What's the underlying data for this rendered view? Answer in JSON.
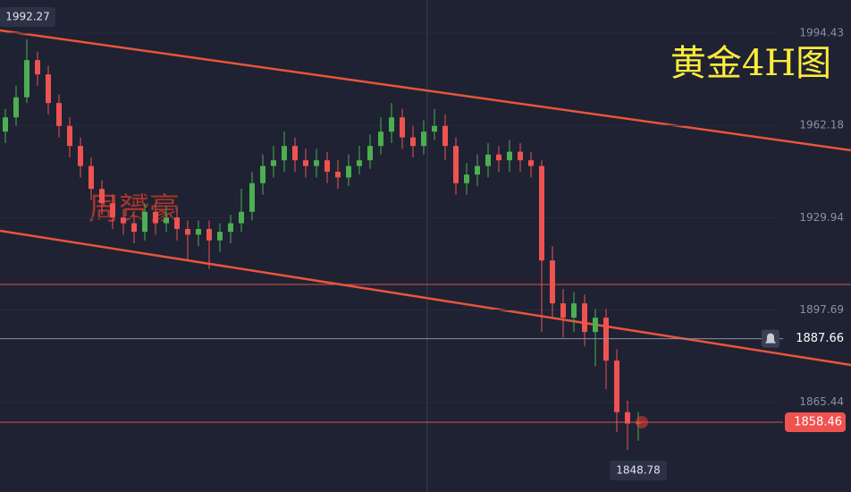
{
  "chart_data": {
    "type": "candlestick",
    "title": "黄金4H图",
    "watermark": "周赟豪",
    "ylim": [
      1834.1,
      2006.0
    ],
    "yticks": [
      1994.43,
      1962.18,
      1929.94,
      1897.69,
      1865.44
    ],
    "up_color": "#4caf50",
    "down_color": "#ef5350",
    "high_label": 1992.27,
    "low_label": 1848.78,
    "alert_price": 1887.66,
    "last_price": 1858.46,
    "open": [
      1960,
      1965,
      1972,
      1985,
      1980,
      1970,
      1962,
      1955,
      1948,
      1940,
      1935,
      1930,
      1928,
      1925,
      1932,
      1928,
      1930,
      1926,
      1924,
      1926,
      1922,
      1925,
      1928,
      1932,
      1942,
      1948,
      1950,
      1955,
      1950,
      1948,
      1950,
      1946,
      1944,
      1948,
      1950,
      1955,
      1960,
      1965,
      1958,
      1955,
      1960,
      1962,
      1955,
      1942,
      1945,
      1948,
      1952,
      1950,
      1953,
      1950,
      1948,
      1915,
      1900,
      1895,
      1900,
      1890,
      1895,
      1880,
      1862,
      1858
    ],
    "high": [
      1968,
      1976,
      1992.27,
      1988,
      1983,
      1973,
      1965,
      1958,
      1951,
      1943,
      1938,
      1933,
      1931,
      1935,
      1935,
      1934,
      1933,
      1929,
      1929,
      1929,
      1928,
      1931,
      1940,
      1946,
      1952,
      1955,
      1960,
      1958,
      1954,
      1954,
      1953,
      1950,
      1952,
      1955,
      1959,
      1965,
      1970,
      1968,
      1962,
      1964,
      1968,
      1966,
      1958,
      1949,
      1952,
      1956,
      1955,
      1957,
      1956,
      1953,
      1950,
      1920,
      1905,
      1904,
      1903,
      1898,
      1898,
      1884,
      1866,
      1862
    ],
    "low": [
      1956,
      1962,
      1970,
      1976,
      1966,
      1958,
      1951,
      1944,
      1936,
      1931,
      1926,
      1924,
      1921,
      1922,
      1924,
      1925,
      1922,
      1915,
      1920,
      1912,
      1918,
      1921,
      1925,
      1929,
      1938,
      1944,
      1946,
      1946,
      1944,
      1944,
      1942,
      1940,
      1941,
      1945,
      1947,
      1952,
      1956,
      1954,
      1951,
      1952,
      1957,
      1950,
      1938,
      1938,
      1941,
      1944,
      1946,
      1946,
      1946,
      1944,
      1890,
      1895,
      1888,
      1890,
      1885,
      1878,
      1870,
      1855,
      1848.78,
      1852
    ],
    "close": [
      1965,
      1972,
      1985,
      1980,
      1970,
      1962,
      1955,
      1948,
      1940,
      1935,
      1930,
      1928,
      1925,
      1932,
      1928,
      1930,
      1926,
      1924,
      1926,
      1922,
      1925,
      1928,
      1932,
      1942,
      1948,
      1950,
      1955,
      1950,
      1948,
      1950,
      1946,
      1944,
      1948,
      1950,
      1955,
      1960,
      1965,
      1958,
      1955,
      1960,
      1962,
      1955,
      1942,
      1945,
      1948,
      1952,
      1950,
      1953,
      1950,
      1948,
      1915,
      1900,
      1895,
      1900,
      1890,
      1895,
      1880,
      1862,
      1858,
      1858.46
    ]
  }
}
